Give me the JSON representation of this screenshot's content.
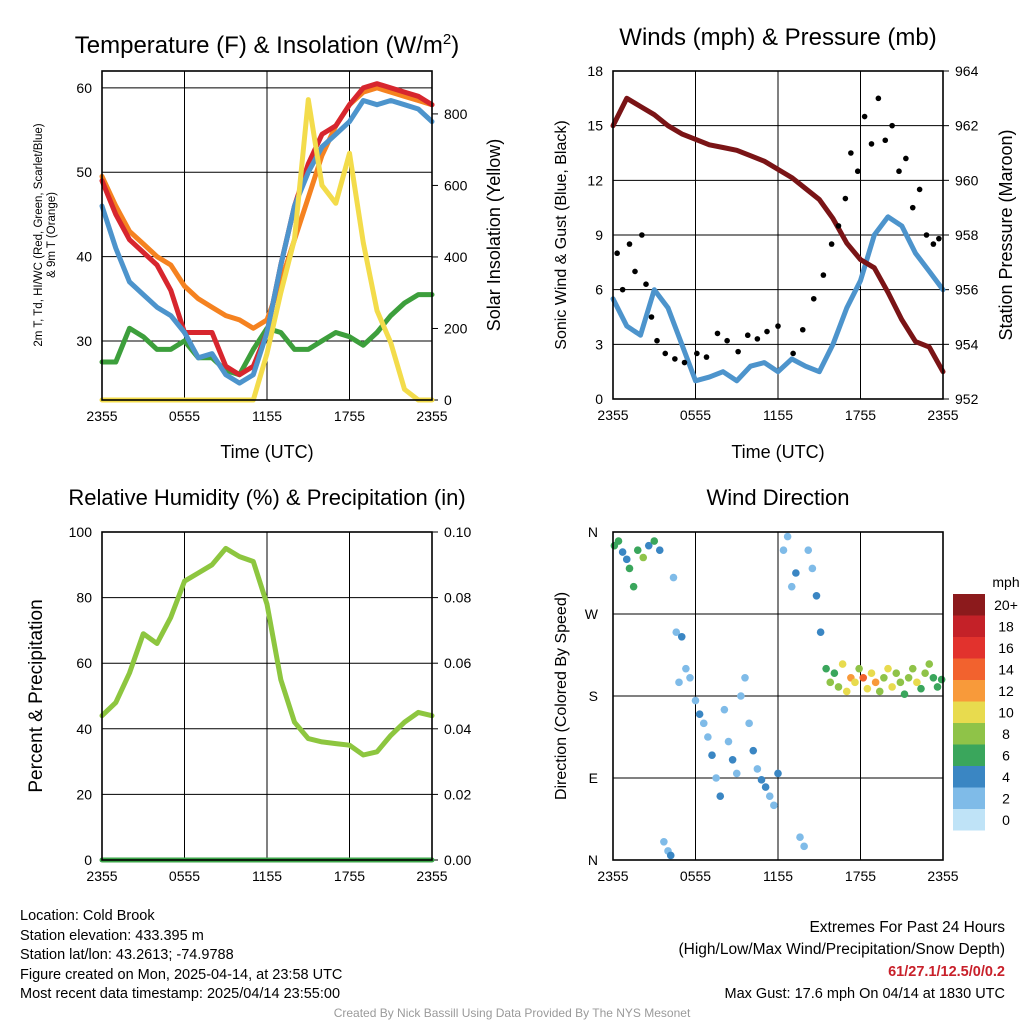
{
  "chart_data": [
    {
      "type": "line",
      "title": "Temperature (F) & Insolation (W/m²)",
      "xlabel": "Time (UTC)",
      "ylabel_left": "2m T, Td, HI/WC (Red, Green, Scarlet/Blue) & 9m T (Orange)",
      "ylabel_right": "Solar Insolation (Yellow)",
      "x_ticks": [
        "2355",
        "0555",
        "1155",
        "1755",
        "2355"
      ],
      "ylim": [
        23,
        62
      ],
      "y_ticks": [
        30,
        40,
        50,
        60
      ],
      "ylim_right": [
        0,
        920
      ],
      "y_ticks_right": [
        0,
        200,
        400,
        600,
        800
      ],
      "grid": true,
      "x_hours": [
        0,
        1,
        2,
        3,
        4,
        5,
        6,
        7,
        8,
        9,
        10,
        11,
        12,
        13,
        14,
        15,
        16,
        17,
        18,
        19,
        20,
        21,
        22,
        23,
        24
      ],
      "series": [
        {
          "color": "#f58220",
          "axis": "left",
          "values": [
            49.5,
            46,
            43,
            41.5,
            40,
            39,
            36.5,
            35,
            34,
            33,
            32.5,
            31.5,
            32.5,
            37,
            42,
            47,
            52,
            55.5,
            58,
            59.5,
            60,
            59.5,
            59,
            58.5,
            58
          ]
        },
        {
          "color": "#3d9f3c",
          "axis": "left",
          "values": [
            27.5,
            27.5,
            31.5,
            30.5,
            29,
            29,
            30,
            28,
            28,
            26.5,
            26,
            29,
            31.5,
            31,
            29,
            29,
            30,
            31,
            30.5,
            29.5,
            31,
            33,
            34.5,
            35.5,
            35.5
          ]
        },
        {
          "color": "#d7262e",
          "axis": "left",
          "values": [
            49,
            45,
            42,
            40.5,
            39,
            36,
            31,
            31,
            31,
            27,
            26,
            27,
            31,
            39,
            46,
            51,
            54.5,
            55.5,
            58,
            60,
            60.5,
            60,
            59.5,
            59,
            58
          ]
        },
        {
          "color": "#4d94cc",
          "axis": "left",
          "values": [
            46,
            41,
            37,
            35.5,
            34,
            33,
            31,
            28,
            28.5,
            26,
            25,
            26,
            31,
            39,
            46,
            50,
            53,
            54.5,
            56,
            58.5,
            58,
            58.5,
            58,
            57.5,
            56
          ]
        },
        {
          "color": "#f3dc4b",
          "axis": "right",
          "values": [
            0,
            0,
            0,
            0,
            0,
            0,
            0,
            0,
            0,
            0,
            0,
            0,
            130,
            300,
            450,
            840,
            600,
            550,
            690,
            440,
            250,
            160,
            30,
            0,
            0
          ]
        }
      ]
    },
    {
      "type": "line",
      "title": "Winds (mph) & Pressure (mb)",
      "xlabel": "Time (UTC)",
      "ylabel_left": "Sonic Wind & Gust (Blue, Black)",
      "ylabel_right": "Station Pressure (Maroon)",
      "x_ticks": [
        "2355",
        "0555",
        "1155",
        "1755",
        "2355"
      ],
      "ylim": [
        0,
        18
      ],
      "y_ticks": [
        0,
        3,
        6,
        9,
        12,
        15,
        18
      ],
      "ylim_right": [
        952,
        964
      ],
      "y_ticks_right": [
        952,
        954,
        956,
        958,
        960,
        962,
        964
      ],
      "grid": true,
      "x_hours": [
        0,
        1,
        2,
        3,
        4,
        5,
        6,
        7,
        8,
        9,
        10,
        11,
        12,
        13,
        14,
        15,
        16,
        17,
        18,
        19,
        20,
        21,
        22,
        23,
        24
      ],
      "series": [
        {
          "color": "#4d94cc",
          "axis": "left",
          "values": [
            5.5,
            4,
            3.5,
            6,
            5,
            3,
            1,
            1.2,
            1.5,
            1,
            1.8,
            2,
            1.5,
            2.2,
            1.8,
            1.5,
            3,
            5,
            6.5,
            9,
            10,
            9.5,
            8,
            7,
            6
          ]
        },
        {
          "color": "#7a1416",
          "axis": "right",
          "values": [
            962,
            963,
            962.7,
            962.4,
            962,
            961.7,
            961.5,
            961.3,
            961.2,
            961.1,
            960.9,
            960.7,
            960.4,
            960.1,
            959.7,
            959.3,
            958.6,
            957.7,
            957.1,
            956.8,
            955.9,
            954.9,
            954.1,
            953.9,
            953
          ]
        }
      ],
      "gust_points": [
        [
          0.3,
          8
        ],
        [
          0.7,
          6
        ],
        [
          1.2,
          8.5
        ],
        [
          1.6,
          7
        ],
        [
          2.1,
          9
        ],
        [
          2.4,
          6.3
        ],
        [
          2.8,
          4.5
        ],
        [
          3.2,
          3.2
        ],
        [
          3.8,
          2.5
        ],
        [
          4.5,
          2.2
        ],
        [
          5.2,
          2
        ],
        [
          6.1,
          2.5
        ],
        [
          6.8,
          2.3
        ],
        [
          7.6,
          3.6
        ],
        [
          8.3,
          3.2
        ],
        [
          9.1,
          2.6
        ],
        [
          9.8,
          3.5
        ],
        [
          10.5,
          3.3
        ],
        [
          11.2,
          3.7
        ],
        [
          12,
          4
        ],
        [
          13.1,
          2.5
        ],
        [
          13.8,
          3.8
        ],
        [
          14.6,
          5.5
        ],
        [
          15.3,
          6.8
        ],
        [
          15.9,
          8.5
        ],
        [
          16.4,
          9.5
        ],
        [
          16.9,
          11
        ],
        [
          17.3,
          13.5
        ],
        [
          17.8,
          12.5
        ],
        [
          18.3,
          15.5
        ],
        [
          18.8,
          14
        ],
        [
          19.3,
          16.5
        ],
        [
          19.8,
          14.2
        ],
        [
          20.3,
          15
        ],
        [
          20.8,
          12.5
        ],
        [
          21.3,
          13.2
        ],
        [
          21.8,
          10.5
        ],
        [
          22.3,
          11.5
        ],
        [
          22.8,
          9
        ],
        [
          23.3,
          8.5
        ],
        [
          23.7,
          8.8
        ]
      ]
    },
    {
      "type": "line",
      "title": "Relative Humidity (%) & Precipitation (in)",
      "ylabel_left": "Percent & Precipitation",
      "x_ticks": [
        "2355",
        "0555",
        "1155",
        "1755",
        "2355"
      ],
      "ylim": [
        0,
        100
      ],
      "y_ticks": [
        0,
        20,
        40,
        60,
        80,
        100
      ],
      "ylim_right": [
        0,
        0.1
      ],
      "y_ticks_right": [
        "0.00",
        "0.02",
        "0.04",
        "0.06",
        "0.08",
        "0.10"
      ],
      "grid": true,
      "x_hours": [
        0,
        1,
        2,
        3,
        4,
        5,
        6,
        7,
        8,
        9,
        10,
        11,
        12,
        13,
        14,
        15,
        16,
        17,
        18,
        19,
        20,
        21,
        22,
        23,
        24
      ],
      "series": [
        {
          "color": "#8dc63f",
          "axis": "left",
          "values": [
            44,
            48,
            57,
            69,
            66,
            74,
            85,
            87.5,
            90,
            95,
            92.5,
            91,
            78,
            55,
            42,
            37,
            36,
            35.5,
            35,
            32,
            33,
            38,
            42,
            45,
            44
          ]
        },
        {
          "color": "#3da64a",
          "axis": "right",
          "values": [
            0,
            0,
            0,
            0,
            0,
            0,
            0,
            0,
            0,
            0,
            0,
            0,
            0,
            0,
            0,
            0,
            0,
            0,
            0,
            0,
            0,
            0,
            0,
            0,
            0
          ]
        }
      ]
    },
    {
      "type": "scatter",
      "title": "Wind Direction",
      "ylabel_left": "Direction (Colored By Speed)",
      "x_ticks": [
        "2355",
        "0555",
        "1155",
        "1755",
        "2355"
      ],
      "y_ticks": [
        "N",
        "E",
        "S",
        "W",
        "N"
      ],
      "ylim": [
        0,
        360
      ],
      "grid": true,
      "legend": {
        "title": "mph",
        "labels": [
          "20+",
          "18",
          "16",
          "14",
          "12",
          "10",
          "8",
          "6",
          "4",
          "2",
          "0"
        ],
        "colors": [
          "#8c1a1c",
          "#c42128",
          "#e2322d",
          "#f2622e",
          "#f89a3a",
          "#e8db4e",
          "#8fc348",
          "#3aa65c",
          "#3a86c3",
          "#7fbbe8",
          "#bfe3f7"
        ]
      },
      "points": [
        [
          0.1,
          345,
          5
        ],
        [
          0.4,
          350,
          6
        ],
        [
          0.7,
          338,
          4
        ],
        [
          1.0,
          330,
          3
        ],
        [
          1.2,
          320,
          5
        ],
        [
          1.5,
          300,
          6
        ],
        [
          1.8,
          340,
          5
        ],
        [
          2.2,
          332,
          7
        ],
        [
          2.6,
          345,
          4
        ],
        [
          3.0,
          350,
          6
        ],
        [
          3.4,
          340,
          3
        ],
        [
          3.7,
          20,
          1
        ],
        [
          4.0,
          10,
          2
        ],
        [
          4.2,
          5,
          3
        ],
        [
          4.4,
          310,
          2
        ],
        [
          4.6,
          250,
          2
        ],
        [
          4.8,
          195,
          1
        ],
        [
          5.0,
          245,
          3
        ],
        [
          5.3,
          210,
          2
        ],
        [
          5.6,
          200,
          1
        ],
        [
          6.0,
          175,
          2
        ],
        [
          6.3,
          160,
          3
        ],
        [
          6.6,
          150,
          1
        ],
        [
          6.9,
          135,
          2
        ],
        [
          7.2,
          115,
          3
        ],
        [
          7.5,
          90,
          2
        ],
        [
          7.8,
          70,
          4
        ],
        [
          8.1,
          165,
          2
        ],
        [
          8.4,
          130,
          1
        ],
        [
          8.7,
          110,
          3
        ],
        [
          9.0,
          95,
          2
        ],
        [
          9.3,
          180,
          1
        ],
        [
          9.6,
          200,
          2
        ],
        [
          9.9,
          150,
          1
        ],
        [
          10.2,
          120,
          3
        ],
        [
          10.5,
          100,
          2
        ],
        [
          10.8,
          88,
          4
        ],
        [
          11.1,
          80,
          3
        ],
        [
          11.4,
          70,
          2
        ],
        [
          11.7,
          60,
          1
        ],
        [
          12.0,
          95,
          3
        ],
        [
          12.4,
          340,
          1
        ],
        [
          12.7,
          355,
          2
        ],
        [
          13.0,
          300,
          2
        ],
        [
          13.3,
          315,
          3
        ],
        [
          13.6,
          25,
          1
        ],
        [
          13.9,
          15,
          2
        ],
        [
          14.2,
          340,
          1
        ],
        [
          14.5,
          320,
          2
        ],
        [
          14.8,
          290,
          4
        ],
        [
          15.1,
          250,
          3
        ],
        [
          15.5,
          210,
          6
        ],
        [
          15.8,
          195,
          7
        ],
        [
          16.1,
          205,
          5
        ],
        [
          16.4,
          190,
          8
        ],
        [
          16.7,
          215,
          9
        ],
        [
          17.0,
          185,
          10
        ],
        [
          17.3,
          200,
          11
        ],
        [
          17.6,
          195,
          9
        ],
        [
          17.9,
          210,
          8
        ],
        [
          18.2,
          200,
          13
        ],
        [
          18.5,
          188,
          10
        ],
        [
          18.8,
          205,
          9
        ],
        [
          19.1,
          195,
          12
        ],
        [
          19.4,
          185,
          8
        ],
        [
          19.7,
          200,
          7
        ],
        [
          20.0,
          210,
          9
        ],
        [
          20.3,
          190,
          10
        ],
        [
          20.6,
          205,
          8
        ],
        [
          20.9,
          195,
          7
        ],
        [
          21.2,
          182,
          6
        ],
        [
          21.5,
          200,
          8
        ],
        [
          21.8,
          210,
          7
        ],
        [
          22.1,
          195,
          9
        ],
        [
          22.4,
          188,
          6
        ],
        [
          22.7,
          205,
          8
        ],
        [
          23.0,
          215,
          7
        ],
        [
          23.3,
          200,
          6
        ],
        [
          23.6,
          190,
          5
        ],
        [
          23.9,
          198,
          6
        ]
      ]
    }
  ],
  "footer": {
    "location": "Location: Cold Brook",
    "elevation": "Station elevation: 433.395 m",
    "latlon": "Station lat/lon: 43.2613; -74.9788",
    "created": "Figure created on Mon, 2025-04-14, at 23:58 UTC",
    "recent": "Most recent data timestamp: 2025/04/14 23:55:00",
    "extremes_title": "Extremes For Past 24 Hours",
    "extremes_subtitle": "(High/Low/Max Wind/Precipitation/Snow Depth)",
    "extremes_values": "61/27.1/12.5/0/0.2",
    "max_gust": "Max Gust: 17.6 mph On 04/14 at 1830 UTC",
    "credit": "Created By Nick Bassill Using Data Provided By The NYS Mesonet"
  }
}
